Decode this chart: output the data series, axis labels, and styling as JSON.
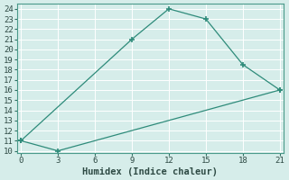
{
  "xlabel": "Humidex (Indice chaleur)",
  "line1_x": [
    0,
    9,
    12,
    15,
    18,
    21
  ],
  "line1_y": [
    11,
    21,
    24,
    23,
    18.5,
    16
  ],
  "line2_x": [
    0,
    3,
    21
  ],
  "line2_y": [
    11,
    10,
    16
  ],
  "line_color": "#2e8b7a",
  "bg_color": "#d6edea",
  "grid_color": "#b0d4ce",
  "xlim": [
    -0.3,
    21.3
  ],
  "ylim": [
    9.8,
    24.5
  ],
  "xticks": [
    0,
    3,
    6,
    9,
    12,
    15,
    18,
    21
  ],
  "yticks": [
    10,
    11,
    12,
    13,
    14,
    15,
    16,
    17,
    18,
    19,
    20,
    21,
    22,
    23,
    24
  ],
  "label_fontsize": 7.5,
  "tick_fontsize": 6.5
}
